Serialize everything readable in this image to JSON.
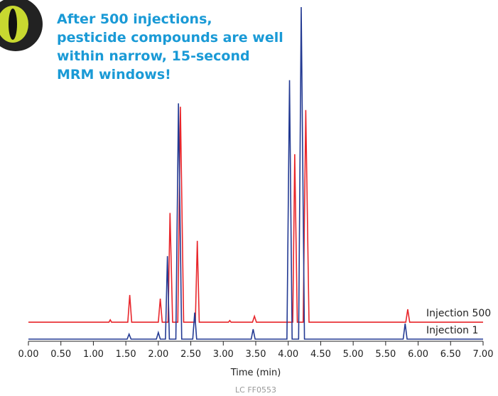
{
  "chart_data": {
    "type": "line",
    "title": "After 500 injections, pesticide compounds are well within narrow, 15-second MRM windows!",
    "xlabel": "Time (min)",
    "footnote": "LC FF0553",
    "xlim": [
      0,
      7
    ],
    "ylim": [
      0,
      100
    ],
    "xticks": [
      {
        "value": 0,
        "label": "0.00"
      },
      {
        "value": 0.5,
        "label": "0.50"
      },
      {
        "value": 1,
        "label": "1.00"
      },
      {
        "value": 1.5,
        "label": "1.50"
      },
      {
        "value": 2,
        "label": "2.00"
      },
      {
        "value": 2.5,
        "label": "2.50"
      },
      {
        "value": 3,
        "label": "3.00"
      },
      {
        "value": 3.5,
        "label": "3.50"
      },
      {
        "value": 4,
        "label": "4.00"
      },
      {
        "value": 4.5,
        "label": "4.50"
      },
      {
        "value": 5,
        "label": "5.00"
      },
      {
        "value": 5.5,
        "label": "5.50"
      },
      {
        "value": 6,
        "label": "6.00"
      },
      {
        "value": 6.5,
        "label": "6.50"
      },
      {
        "value": 7,
        "label": "7.00"
      }
    ],
    "series": [
      {
        "name": "Injection 500",
        "color": "#e8262b",
        "x": [
          0,
          1.24,
          1.26,
          1.28,
          1.53,
          1.56,
          1.59,
          2.0,
          2.03,
          2.06,
          2.15,
          2.18,
          2.22,
          2.3,
          2.34,
          2.39,
          2.57,
          2.6,
          2.63,
          3.08,
          3.1,
          3.12,
          3.45,
          3.48,
          3.51,
          4.07,
          4.1,
          4.14,
          4.23,
          4.27,
          4.32,
          5.81,
          5.84,
          5.87,
          7
        ],
        "values": [
          5.1,
          5.1,
          5.8,
          5.1,
          5.1,
          13.3,
          5.1,
          5.1,
          12.2,
          5.1,
          5.1,
          38,
          5.1,
          5.1,
          70,
          5.1,
          5.1,
          29.6,
          5.1,
          5.1,
          5.6,
          5.1,
          5.1,
          6.9,
          5.1,
          5.1,
          55.7,
          5.1,
          5.1,
          69,
          5.1,
          5.1,
          9,
          5.1,
          5.1
        ]
      },
      {
        "name": "Injection 1",
        "color": "#233a93",
        "x": [
          0,
          1.52,
          1.55,
          1.58,
          1.97,
          2.0,
          2.03,
          2.11,
          2.14,
          2.17,
          2.27,
          2.31,
          2.36,
          2.53,
          2.56,
          2.59,
          3.43,
          3.46,
          3.49,
          3.98,
          4.02,
          4.06,
          4.16,
          4.2,
          4.25,
          5.77,
          5.8,
          5.83,
          7
        ],
        "values": [
          0,
          0,
          1.5,
          0,
          0,
          2,
          0,
          0,
          25,
          0,
          0,
          71,
          0,
          0,
          8,
          0,
          0,
          3,
          0,
          0,
          78,
          0,
          0,
          100,
          0,
          0,
          4.7,
          0,
          0
        ]
      }
    ]
  }
}
